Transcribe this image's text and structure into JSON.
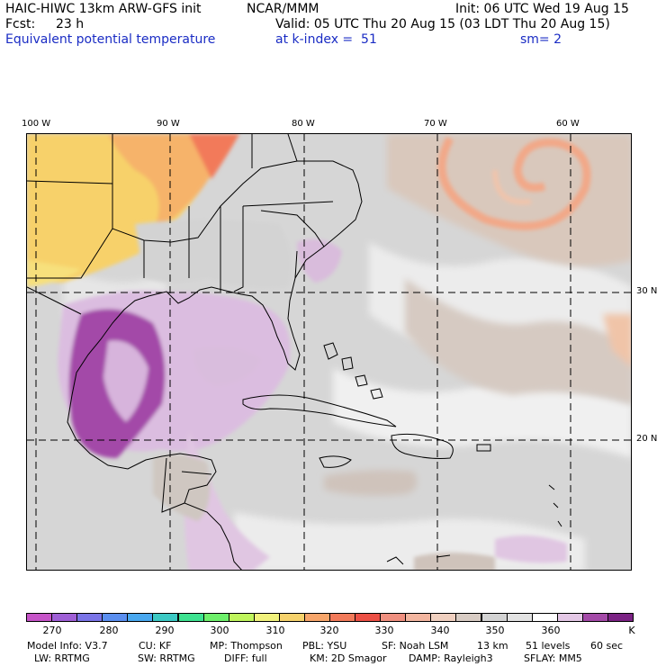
{
  "header": {
    "model": "HAIC-HIWC 13km ARW-GFS init",
    "org": "NCAR/MMM",
    "init": "Init: 06 UTC Wed 19 Aug 15",
    "fcst_label": "Fcst:",
    "fcst_value": "23 h",
    "valid": "Valid: 05 UTC Thu 20 Aug 15 (03 LDT Thu 20 Aug 15)",
    "field": "Equivalent potential temperature",
    "level": "at k-index =  51",
    "smooth": "sm= 2"
  },
  "map": {
    "lon_labels": [
      "100 W",
      "90 W",
      "80 W",
      "70 W",
      "60 W"
    ],
    "lat_labels": [
      "30 N",
      "20 N"
    ]
  },
  "colorbar": {
    "labels": [
      "270",
      "280",
      "290",
      "300",
      "310",
      "320",
      "330",
      "340",
      "350",
      "360"
    ],
    "unit": "K",
    "colors": [
      "#c654c8",
      "#9f5fd6",
      "#7a74e8",
      "#5b8ff0",
      "#49a8f0",
      "#3cc9c4",
      "#3de290",
      "#6ef06b",
      "#bff55c",
      "#f1f27c",
      "#f6d26c",
      "#f7a56a",
      "#f27a5a",
      "#ec5045",
      "#f09080",
      "#f3b6a0",
      "#f0d0c0",
      "#d8ccc4",
      "#d3d3d3",
      "#e2e2e2",
      "#ffffff",
      "#e4c8e6",
      "#a44aa8",
      "#7b2284"
    ]
  },
  "footer": {
    "line1": [
      "Model Info: V3.7",
      "CU: KF",
      "MP: Thompson",
      "PBL: YSU",
      "SF: Noah LSM",
      "13 km",
      "51 levels",
      "60 sec"
    ],
    "line2": [
      "LW: RRTMG",
      "SW: RRTMG",
      "DIFF: full",
      "KM: 2D Smagor",
      "DAMP: Rayleigh3",
      "SFLAY: MM5"
    ]
  }
}
